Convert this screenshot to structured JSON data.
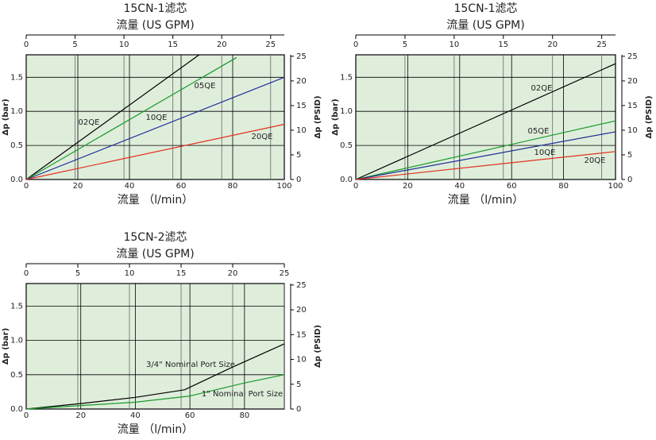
{
  "chart_data": [
    {
      "type": "line",
      "title": "15CN-1滤芯",
      "x2label": "流量 (US GPM)",
      "xlabel": "流量 （l/min）",
      "ylabel": "Δp (bar)",
      "y2label": "Δp (PSID)",
      "xlim": [
        0,
        100
      ],
      "xticks": [
        0,
        20,
        40,
        60,
        80,
        100
      ],
      "x2lim": [
        0,
        26.4
      ],
      "x2ticks": [
        0,
        5,
        10,
        15,
        20,
        25
      ],
      "ylim": [
        0,
        1.83
      ],
      "yticks": [
        {
          "value": 0,
          "label": "0.0"
        },
        {
          "value": 0.5,
          "label": "0.5"
        },
        {
          "value": 1,
          "label": "1.0"
        },
        {
          "value": 1.5,
          "label": "1.5"
        }
      ],
      "y2lim": [
        0,
        25.3
      ],
      "y2ticks": [
        0,
        5,
        10,
        15,
        20,
        25
      ],
      "grid": true,
      "series": [
        {
          "name": "02QE",
          "color": "#000000",
          "x": [
            0,
            67
          ],
          "values": [
            0,
            1.83
          ]
        },
        {
          "name": "05QE",
          "color": "#1a9a2a",
          "x": [
            0,
            81.5
          ],
          "values": [
            0,
            1.79
          ]
        },
        {
          "name": "10QE",
          "color": "#1f2f9a",
          "x": [
            0,
            100
          ],
          "values": [
            0,
            1.5
          ]
        },
        {
          "name": "20QE",
          "color": "#e0301e",
          "x": [
            0,
            100
          ],
          "values": [
            0,
            0.81
          ]
        }
      ]
    },
    {
      "type": "line",
      "title": "15CN-1滤芯",
      "x2label": "流量 (US GPM)",
      "xlabel": "流量 （l/min）",
      "ylabel": "Δp (bar)",
      "y2label": "Δp (PSID)",
      "xlim": [
        0,
        100
      ],
      "xticks": [
        0,
        20,
        40,
        60,
        80,
        100
      ],
      "x2lim": [
        0,
        26.4
      ],
      "x2ticks": [
        0,
        5,
        10,
        15,
        20,
        25
      ],
      "ylim": [
        0,
        1.83
      ],
      "yticks": [
        {
          "value": 0,
          "label": "0.0"
        },
        {
          "value": 0.5,
          "label": "0.5"
        },
        {
          "value": 1,
          "label": "1.0"
        },
        {
          "value": 1.5,
          "label": "1.5"
        }
      ],
      "y2lim": [
        0,
        25.3
      ],
      "y2ticks": [
        0,
        5,
        10,
        15,
        20,
        25
      ],
      "grid": true,
      "series": [
        {
          "name": "02QE",
          "color": "#000000",
          "x": [
            0,
            100
          ],
          "values": [
            0,
            1.7
          ]
        },
        {
          "name": "05QE",
          "color": "#1a9a2a",
          "x": [
            0,
            100
          ],
          "values": [
            0,
            0.86
          ]
        },
        {
          "name": "10QE",
          "color": "#1f2f9a",
          "x": [
            0,
            100
          ],
          "values": [
            0,
            0.7
          ]
        },
        {
          "name": "20QE",
          "color": "#e0301e",
          "x": [
            0,
            100
          ],
          "values": [
            0,
            0.41
          ]
        }
      ]
    },
    {
      "type": "line",
      "title": "15CN-2滤芯",
      "x2label": "流量 (US GPM)",
      "xlabel": "流量 （l/min）",
      "ylabel": "Δp (bar)",
      "y2label": "Δp (PSID)",
      "xlim": [
        0,
        94.6
      ],
      "xticks": [
        0,
        20,
        40,
        60,
        80
      ],
      "x2lim": [
        0,
        25
      ],
      "x2ticks": [
        0,
        5,
        10,
        15,
        20,
        25
      ],
      "ylim": [
        0,
        1.83
      ],
      "yticks": [
        {
          "value": 0,
          "label": "0.0"
        },
        {
          "value": 0.5,
          "label": "0.5"
        },
        {
          "value": 1,
          "label": "1.0"
        },
        {
          "value": 1.5,
          "label": "1.5"
        }
      ],
      "y2lim": [
        0,
        25.3
      ],
      "y2ticks": [
        0,
        5,
        10,
        15,
        20,
        25
      ],
      "grid": true,
      "series": [
        {
          "name": "3/4\" Nominal Port Size",
          "color": "#000000",
          "x": [
            0,
            20,
            40,
            58,
            75,
            94.6
          ],
          "values": [
            0,
            0.08,
            0.17,
            0.28,
            0.6,
            0.95
          ]
        },
        {
          "name": "1\" Nominal Port Size",
          "color": "#1a9a2a",
          "x": [
            0,
            40,
            60,
            80,
            94.6
          ],
          "values": [
            0,
            0.1,
            0.19,
            0.38,
            0.5
          ]
        }
      ]
    }
  ]
}
